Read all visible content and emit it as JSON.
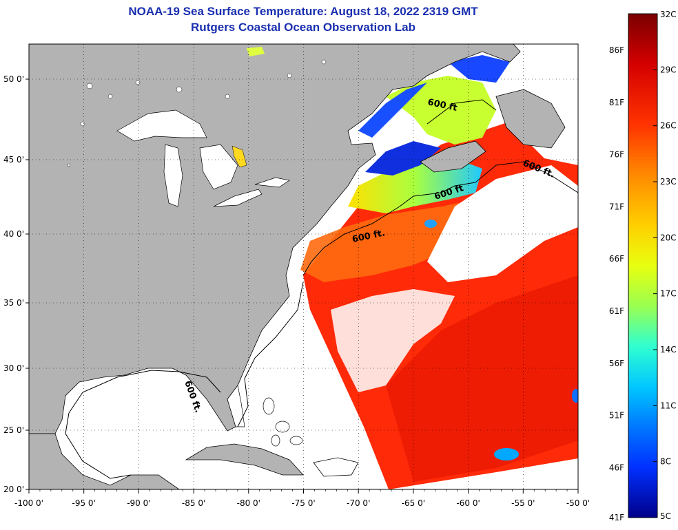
{
  "header": {
    "title": "NOAA-19 Sea Surface Temperature:  August 18, 2022 2319 GMT",
    "subtitle": "Rutgers Coastal Ocean Observation Lab"
  },
  "map": {
    "lon_range": [
      -100,
      -50
    ],
    "lat_range": [
      20,
      52
    ],
    "lat_ticks": [
      {
        "value": 50,
        "label": "50 0'"
      },
      {
        "value": 45,
        "label": "45 0'"
      },
      {
        "value": 40,
        "label": "40 0'"
      },
      {
        "value": 35,
        "label": "35 0'"
      },
      {
        "value": 30,
        "label": "30 0'"
      },
      {
        "value": 25,
        "label": "25 0'"
      },
      {
        "value": 20,
        "label": "20 0'"
      }
    ],
    "lon_ticks": [
      {
        "value": -100,
        "label": "-100 0'"
      },
      {
        "value": -95,
        "label": "-95 0'"
      },
      {
        "value": -90,
        "label": "-90 0'"
      },
      {
        "value": -85,
        "label": "-85 0'"
      },
      {
        "value": -80,
        "label": "-80 0'"
      },
      {
        "value": -75,
        "label": "-75 0'"
      },
      {
        "value": -70,
        "label": "-70 0'"
      },
      {
        "value": -65,
        "label": "-65 0'"
      },
      {
        "value": -60,
        "label": "-60 0'"
      },
      {
        "value": -55,
        "label": "-55 0'"
      },
      {
        "value": -50,
        "label": "-50 0'"
      }
    ],
    "isobath_labels": [
      "600 ft.",
      "600 ft.",
      "600 ft",
      "600 ft",
      "600 ft."
    ],
    "land_color": "#b3b3b3",
    "water_no_data_color": "#ffffff"
  },
  "colorbar": {
    "celsius_labels": [
      "32C",
      "29C",
      "26C",
      "23C",
      "20C",
      "17C",
      "14C",
      "11C",
      "8C",
      "5C"
    ],
    "fahrenheit_labels": [
      "86F",
      "81F",
      "76F",
      "71F",
      "66F",
      "61F",
      "56F",
      "51F",
      "46F",
      "41F"
    ],
    "colors": [
      "#7a0000",
      "#d40000",
      "#ff3300",
      "#ff8a00",
      "#ffd000",
      "#e8ff10",
      "#9aff50",
      "#30ffd0",
      "#00c8ff",
      "#0078ff",
      "#0030ff",
      "#00008a"
    ]
  }
}
